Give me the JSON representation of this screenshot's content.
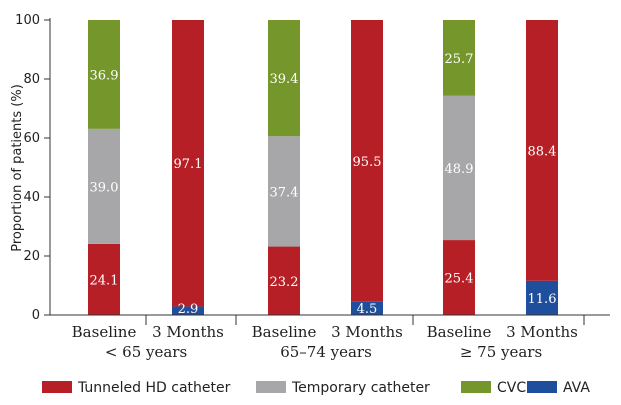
{
  "chart_data": {
    "type": "bar",
    "stacked": true,
    "ylabel": "Proportion of patients (%)",
    "ylim": [
      0,
      100
    ],
    "yticks": [
      0,
      20,
      40,
      60,
      80,
      100
    ],
    "categories": [
      "Baseline",
      "3 Months",
      "Baseline",
      "3 Months",
      "Baseline",
      "3 Months"
    ],
    "groups": [
      {
        "label": "< 65 years",
        "categories": [
          0,
          1
        ]
      },
      {
        "label": "65–74 years",
        "categories": [
          2,
          3
        ]
      },
      {
        "label": "≥ 75 years",
        "categories": [
          4,
          5
        ]
      }
    ],
    "series": [
      {
        "name": "AVA",
        "color": "#1f4e9c",
        "values": [
          0,
          2.9,
          0,
          4.5,
          0,
          11.6
        ],
        "labels": [
          "",
          "2.9",
          "",
          "4.5",
          "",
          "11.6"
        ]
      },
      {
        "name": "Tunneled HD catheter",
        "color": "#b71f27",
        "values": [
          24.1,
          97.1,
          23.2,
          95.5,
          25.4,
          88.4
        ],
        "labels": [
          "24.1",
          "97.1",
          "23.2",
          "95.5",
          "25.4",
          "88.4"
        ]
      },
      {
        "name": "Temporary catheter",
        "color": "#a7a7aa",
        "values": [
          39.0,
          0,
          37.4,
          0,
          48.9,
          0
        ],
        "labels": [
          "39.0",
          "",
          "37.4",
          "",
          "48.9",
          ""
        ]
      },
      {
        "name": "CVC",
        "color": "#74962b",
        "values": [
          36.9,
          0,
          39.4,
          0,
          25.7,
          0
        ],
        "labels": [
          "36.9",
          "",
          "39.4",
          "",
          "25.7",
          ""
        ]
      }
    ],
    "legend": {
      "placement": "bottom",
      "order": [
        "Tunneled HD catheter",
        "Temporary catheter",
        "CVC",
        "AVA"
      ]
    },
    "grid": false
  }
}
